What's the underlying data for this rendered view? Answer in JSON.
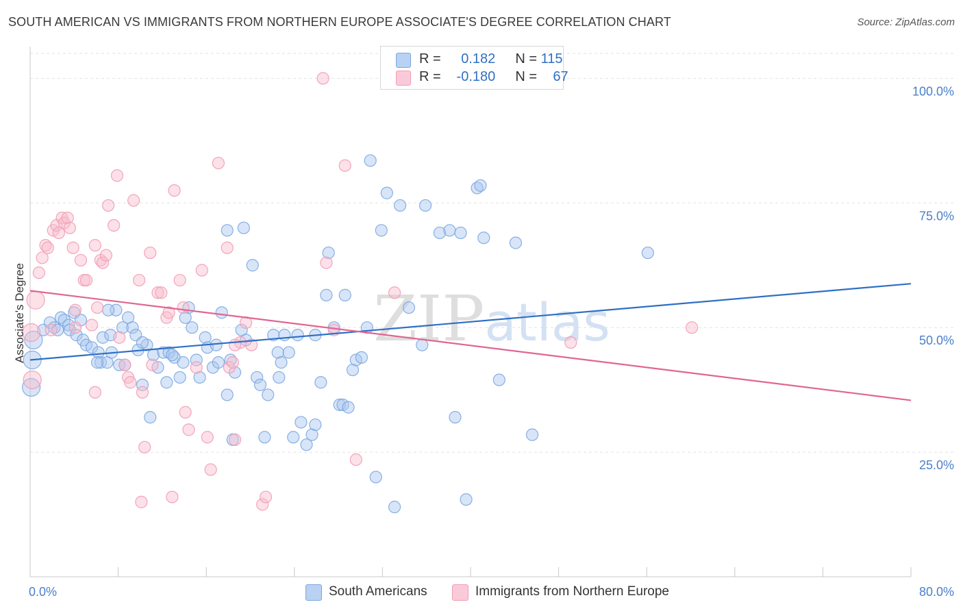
{
  "chart_data": {
    "type": "scatter",
    "title": "SOUTH AMERICAN VS IMMIGRANTS FROM NORTHERN EUROPE ASSOCIATE'S DEGREE CORRELATION CHART",
    "source": "Source: ZipAtlas.com",
    "ylabel": "Associate's Degree",
    "xlabel": "",
    "xlim": [
      0,
      80
    ],
    "ylim": [
      0,
      105
    ],
    "x_tick_labels": [
      "0.0%",
      "80.0%"
    ],
    "y_ticks": [
      25,
      50,
      75,
      100
    ],
    "y_tick_labels": [
      "25.0%",
      "50.0%",
      "75.0%",
      "100.0%"
    ],
    "grid": true,
    "watermark": "ZIPatlas",
    "legend_stats": [
      {
        "r_label": "R =",
        "r_value": "0.182",
        "n_label": "N =",
        "n_value": "115"
      },
      {
        "r_label": "R =",
        "r_value": "-0.180",
        "n_label": "N =",
        "n_value": "67"
      }
    ],
    "series": [
      {
        "name": "South Americans",
        "color": "#7aa7e0",
        "fill": "#a9c6ef",
        "line_color": "#2f6fc4",
        "trend": {
          "x": [
            0,
            80
          ],
          "y": [
            43.5,
            58.8
          ]
        },
        "points": [
          [
            0.3,
            47.5
          ],
          [
            0.2,
            43.5
          ],
          [
            0.1,
            38
          ],
          [
            1.2,
            49.5
          ],
          [
            1.8,
            51
          ],
          [
            2.2,
            50
          ],
          [
            2.5,
            49.5
          ],
          [
            2.8,
            52
          ],
          [
            3.1,
            51.5
          ],
          [
            3.5,
            50.5
          ],
          [
            3.6,
            49.5
          ],
          [
            4,
            53
          ],
          [
            4.2,
            48.5
          ],
          [
            4.6,
            51.5
          ],
          [
            4.8,
            47.5
          ],
          [
            5.1,
            46.5
          ],
          [
            5.6,
            46
          ],
          [
            6.2,
            45
          ],
          [
            6.6,
            48
          ],
          [
            6.4,
            43
          ],
          [
            7,
            43
          ],
          [
            7.4,
            45
          ],
          [
            7.3,
            48.5
          ],
          [
            7.8,
            53.5
          ],
          [
            8.1,
            42.5
          ],
          [
            8.6,
            42.5
          ],
          [
            8.4,
            50
          ],
          [
            8.9,
            52
          ],
          [
            9.3,
            50
          ],
          [
            9.6,
            48.5
          ],
          [
            9.8,
            45.5
          ],
          [
            10.2,
            38.5
          ],
          [
            10.6,
            46.5
          ],
          [
            10.9,
            32
          ],
          [
            11.2,
            44.5
          ],
          [
            11.6,
            42
          ],
          [
            12.1,
            45
          ],
          [
            12.4,
            39
          ],
          [
            12.6,
            45
          ],
          [
            13.1,
            44
          ],
          [
            13.6,
            40
          ],
          [
            13.9,
            43
          ],
          [
            14.4,
            54
          ],
          [
            14.7,
            50
          ],
          [
            15.1,
            43.5
          ],
          [
            15.4,
            40
          ],
          [
            15.9,
            48
          ],
          [
            16.1,
            46
          ],
          [
            16.6,
            42
          ],
          [
            16.9,
            46.5
          ],
          [
            17.1,
            43
          ],
          [
            17.4,
            53
          ],
          [
            17.9,
            36.5
          ],
          [
            18.2,
            43.5
          ],
          [
            18.4,
            27.5
          ],
          [
            18.6,
            41
          ],
          [
            19.2,
            49.5
          ],
          [
            19.6,
            47.5
          ],
          [
            20.2,
            62.5
          ],
          [
            20.6,
            40
          ],
          [
            20.9,
            38.5
          ],
          [
            21.3,
            28
          ],
          [
            21.6,
            36.5
          ],
          [
            22.1,
            48.5
          ],
          [
            22.5,
            45
          ],
          [
            22.8,
            43
          ],
          [
            23.1,
            48.5
          ],
          [
            23.5,
            45
          ],
          [
            23.9,
            28
          ],
          [
            24.3,
            48.5
          ],
          [
            24.6,
            31
          ],
          [
            25.1,
            26.5
          ],
          [
            25.6,
            28.5
          ],
          [
            25.9,
            30.5
          ],
          [
            26.4,
            39
          ],
          [
            26.9,
            56.5
          ],
          [
            27.1,
            65
          ],
          [
            27.6,
            50
          ],
          [
            28.1,
            34.5
          ],
          [
            28.4,
            34.5
          ],
          [
            28.6,
            56.5
          ],
          [
            28.9,
            34
          ],
          [
            29.3,
            41.5
          ],
          [
            29.6,
            43.5
          ],
          [
            30.1,
            44
          ],
          [
            30.6,
            50
          ],
          [
            30.9,
            83.5
          ],
          [
            31.4,
            20
          ],
          [
            31.9,
            69.5
          ],
          [
            32.4,
            77
          ],
          [
            33.1,
            14
          ],
          [
            33.6,
            74.5
          ],
          [
            34.4,
            54
          ],
          [
            35.6,
            46.5
          ],
          [
            35.9,
            74.5
          ],
          [
            37.2,
            69
          ],
          [
            38.1,
            69.5
          ],
          [
            38.6,
            32
          ],
          [
            39.1,
            69
          ],
          [
            39.6,
            15.5
          ],
          [
            40.6,
            78
          ],
          [
            40.9,
            78.5
          ],
          [
            41.2,
            68
          ],
          [
            42.6,
            39.5
          ],
          [
            44.1,
            67
          ],
          [
            45.6,
            28.5
          ],
          [
            56.1,
            65
          ],
          [
            25.9,
            48.5
          ],
          [
            17.9,
            69.5
          ],
          [
            19.4,
            70
          ],
          [
            10.2,
            47
          ],
          [
            6.1,
            43
          ],
          [
            7.1,
            53.5
          ],
          [
            22.6,
            40
          ],
          [
            14.1,
            52
          ],
          [
            12.9,
            44.5
          ]
        ]
      },
      {
        "name": "Immigrants from Northern Europe",
        "color": "#f19bb6",
        "fill": "#f8bccd",
        "line_color": "#e06592",
        "trend": {
          "x": [
            0,
            80
          ],
          "y": [
            57.4,
            35.4
          ]
        },
        "points": [
          [
            0.2,
            39.5
          ],
          [
            0.5,
            55.5
          ],
          [
            0.8,
            61
          ],
          [
            1.1,
            64
          ],
          [
            1.4,
            66.5
          ],
          [
            1.6,
            66
          ],
          [
            2.1,
            69.5
          ],
          [
            2.4,
            70.5
          ],
          [
            2.6,
            69
          ],
          [
            2.9,
            72
          ],
          [
            3.1,
            71
          ],
          [
            3.4,
            72
          ],
          [
            3.6,
            70
          ],
          [
            3.9,
            66
          ],
          [
            4.1,
            53.5
          ],
          [
            4.6,
            63.5
          ],
          [
            4.9,
            59.5
          ],
          [
            5.1,
            59.5
          ],
          [
            5.6,
            50.5
          ],
          [
            5.9,
            66.5
          ],
          [
            6.1,
            54
          ],
          [
            6.4,
            63.5
          ],
          [
            6.6,
            63
          ],
          [
            6.9,
            64.5
          ],
          [
            7.1,
            74.5
          ],
          [
            7.6,
            70.5
          ],
          [
            7.9,
            80.5
          ],
          [
            8.1,
            48
          ],
          [
            8.6,
            42.5
          ],
          [
            8.9,
            40
          ],
          [
            9.1,
            39
          ],
          [
            9.4,
            75.5
          ],
          [
            9.9,
            59.5
          ],
          [
            10.2,
            37
          ],
          [
            10.4,
            26
          ],
          [
            10.9,
            65
          ],
          [
            11.1,
            42.5
          ],
          [
            11.6,
            57
          ],
          [
            11.9,
            57
          ],
          [
            12.4,
            52
          ],
          [
            12.6,
            53
          ],
          [
            13.1,
            77.5
          ],
          [
            13.6,
            59.5
          ],
          [
            13.9,
            54
          ],
          [
            14.1,
            33
          ],
          [
            14.4,
            29.5
          ],
          [
            15.1,
            42
          ],
          [
            15.6,
            61.5
          ],
          [
            16.1,
            28
          ],
          [
            16.4,
            21.5
          ],
          [
            17.1,
            83
          ],
          [
            17.9,
            66
          ],
          [
            18.1,
            42
          ],
          [
            18.4,
            43
          ],
          [
            18.6,
            27.5
          ],
          [
            19.1,
            47
          ],
          [
            19.6,
            51
          ],
          [
            20.1,
            46.5
          ],
          [
            21.1,
            14.5
          ],
          [
            21.4,
            16
          ],
          [
            26.6,
            100
          ],
          [
            26.9,
            63
          ],
          [
            27.6,
            49.5
          ],
          [
            28.6,
            82.5
          ],
          [
            29.6,
            23.5
          ],
          [
            33.1,
            57
          ],
          [
            49.1,
            47
          ],
          [
            60.1,
            50
          ],
          [
            10.1,
            15
          ],
          [
            12.9,
            16
          ],
          [
            1.9,
            49.5
          ],
          [
            4.1,
            50
          ],
          [
            0.1,
            49
          ],
          [
            5.9,
            37
          ],
          [
            18.6,
            46.5
          ]
        ]
      }
    ]
  }
}
